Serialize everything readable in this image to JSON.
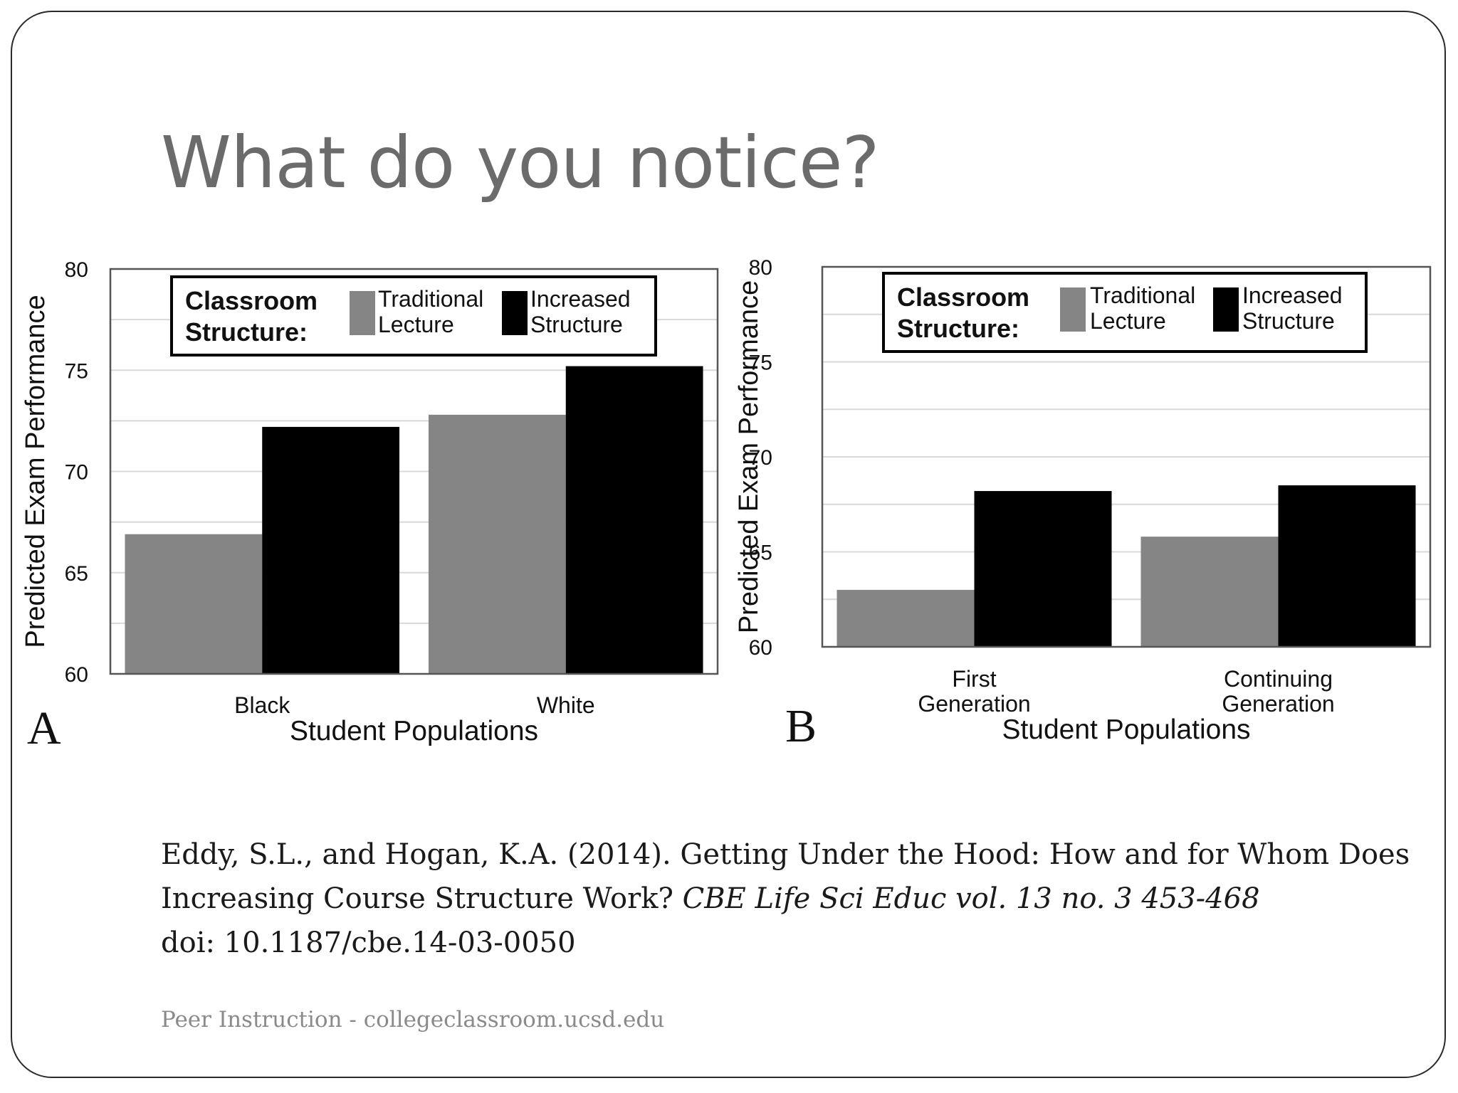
{
  "slide": {
    "title": "What do you notice?",
    "citation": {
      "authors_line": "Eddy, S.L., and Hogan, K.A. (2014). Getting Under the Hood: How and for Whom Does",
      "line2_text": "Increasing Course Structure Work?",
      "journal": "CBE Life Sci Educ vol. 13 no. 3 453-468",
      "doi": "doi: 10.1187/cbe.14-03-0050"
    },
    "footer": "Peer Instruction - collegeclassroom.ucsd.edu"
  },
  "colors": {
    "traditional": "#858585",
    "increased": "#000000",
    "title": "#6b6b6b",
    "grid": "#d8d8d8"
  },
  "chart_data": [
    {
      "type": "bar",
      "panel_label": "A",
      "categories": [
        "Black",
        "White"
      ],
      "series": [
        {
          "name": "Traditional Lecture",
          "values": [
            66.9,
            72.8
          ]
        },
        {
          "name": "Increased Structure",
          "values": [
            72.2,
            75.2
          ]
        }
      ],
      "legend": {
        "title_line1": "Classroom",
        "title_line2": "Structure:",
        "item1_line1": "Traditional",
        "item1_line2": "Lecture",
        "item2_line1": "Increased",
        "item2_line2": "Structure",
        "position": "top"
      },
      "xlabel": "Student Populations",
      "ylabel": "Predicted Exam Performance",
      "ylim": [
        60,
        80
      ],
      "yticks": [
        "60",
        "65",
        "70",
        "75",
        "80"
      ],
      "grid": true
    },
    {
      "type": "bar",
      "panel_label": "B",
      "categories": [
        "First Generation",
        "Continuing Generation"
      ],
      "category_lines": [
        [
          "First",
          "Generation"
        ],
        [
          "Continuing",
          "Generation"
        ]
      ],
      "series": [
        {
          "name": "Traditional Lecture",
          "values": [
            63.0,
            65.8
          ]
        },
        {
          "name": "Increased Structure",
          "values": [
            68.2,
            68.5
          ]
        }
      ],
      "legend": {
        "title_line1": "Classroom",
        "title_line2": "Structure:",
        "item1_line1": "Traditional",
        "item1_line2": "Lecture",
        "item2_line1": "Increased",
        "item2_line2": "Structure",
        "position": "top"
      },
      "xlabel": "Student Populations",
      "ylabel": "Predicted Exam Performance",
      "ylim": [
        60,
        80
      ],
      "yticks": [
        "60",
        "65",
        "70",
        "75",
        "80"
      ],
      "grid": true
    }
  ]
}
